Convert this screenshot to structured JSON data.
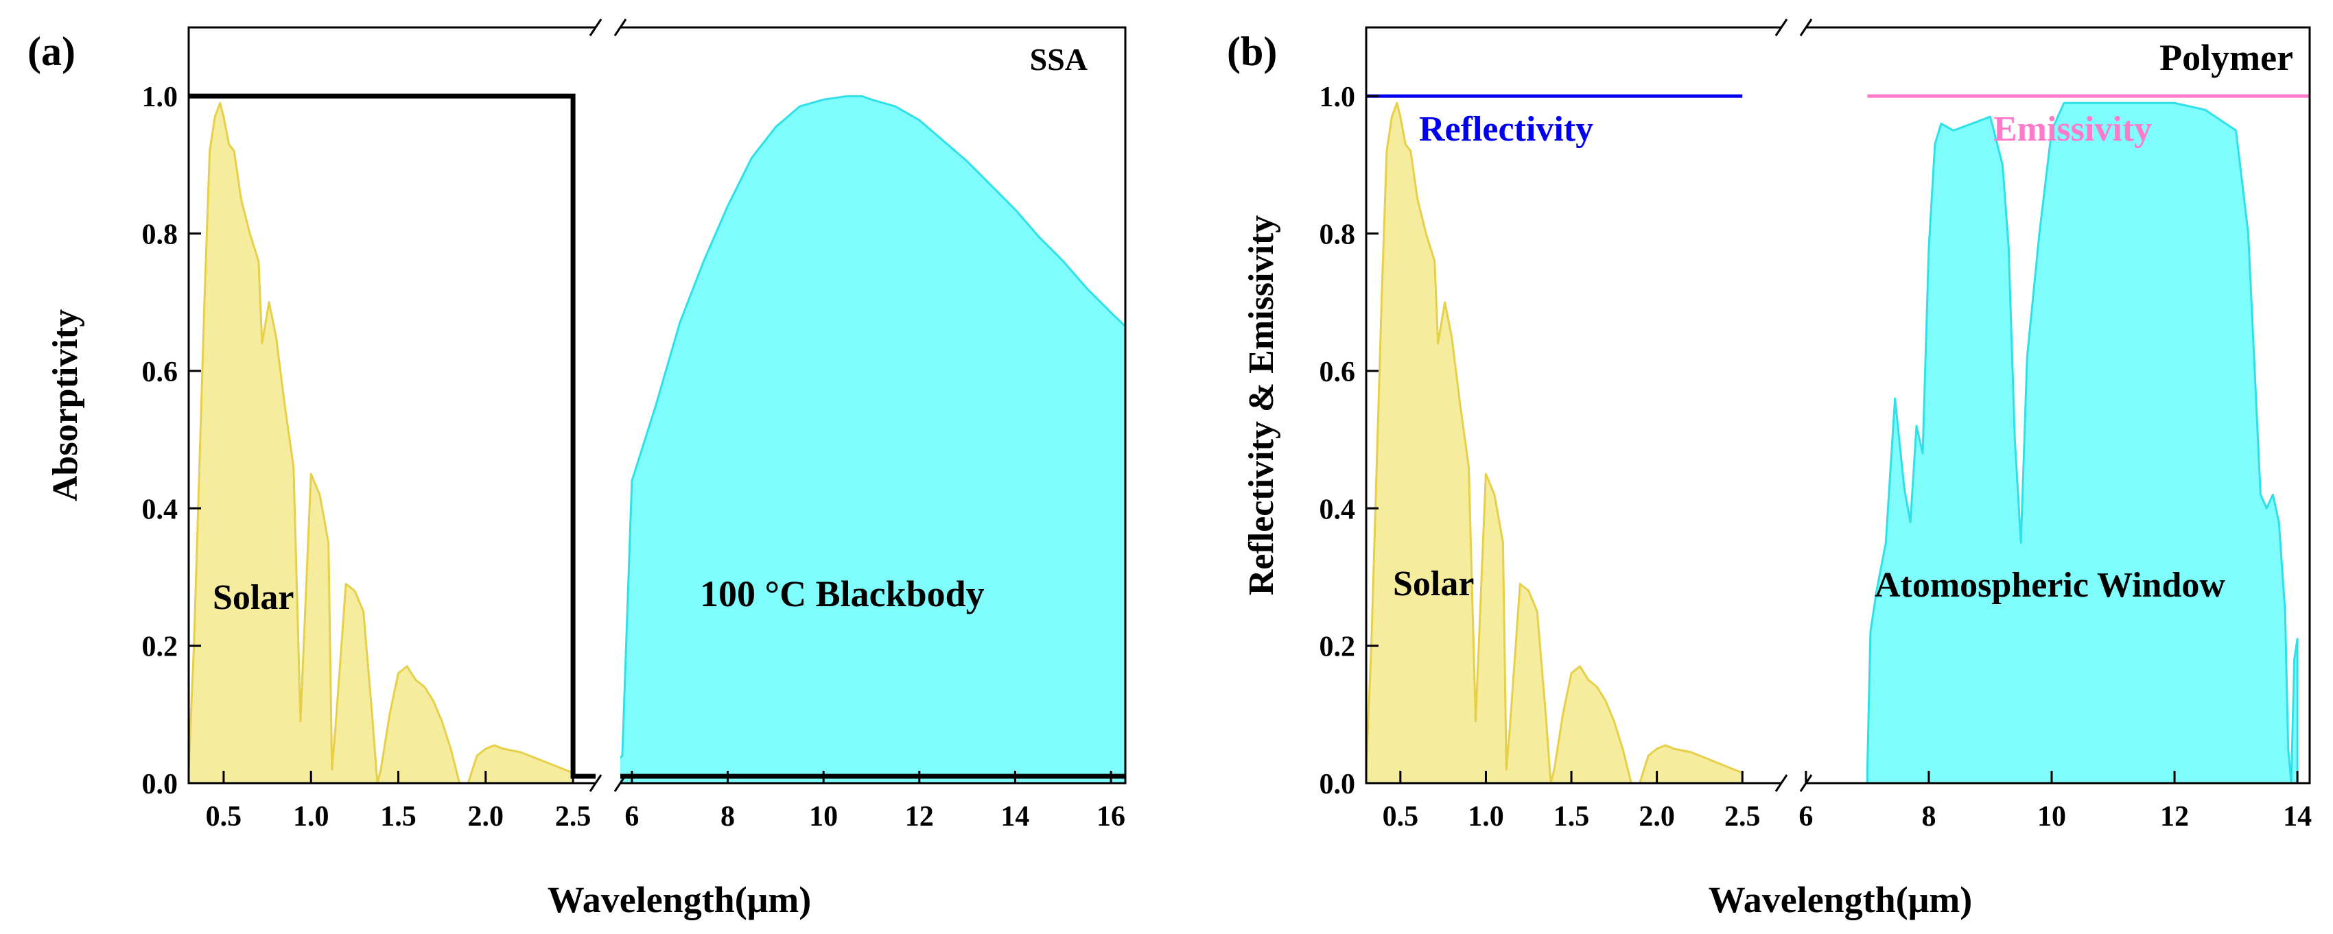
{
  "chart_data": [
    {
      "type": "area",
      "panel_label": "(a)",
      "title": "SSA",
      "xlabel": "Wavelength(μm)",
      "ylabel": "Absorptivity",
      "ylim": [
        0.0,
        1.1
      ],
      "yticks": [
        "0.0",
        "0.2",
        "0.4",
        "0.6",
        "0.8",
        "1.0"
      ],
      "axis_break": true,
      "x_segments": [
        {
          "range": [
            0.3,
            2.7
          ],
          "ticks": [
            "0.5",
            "1.0",
            "1.5",
            "2.0",
            "2.5"
          ],
          "tick_values": [
            0.5,
            1.0,
            1.5,
            2.0,
            2.5
          ]
        },
        {
          "range": [
            5.5,
            16.3
          ],
          "ticks": [
            "6",
            "8",
            "10",
            "12",
            "14",
            "16"
          ],
          "tick_values": [
            6,
            8,
            10,
            12,
            14,
            16
          ]
        }
      ],
      "annotations": {
        "solar": "Solar",
        "blackbody": "100 °C Blackbody"
      },
      "colors": {
        "solar": "#f5ec9e",
        "solar_edge": "#e6d04a",
        "blackbody": "#7ffdfd",
        "blackbody_edge": "#2fe0e8",
        "line": "#000000"
      },
      "series": [
        {
          "name": "Solar",
          "segment": 0,
          "x": [
            0.3,
            0.33,
            0.36,
            0.39,
            0.42,
            0.45,
            0.48,
            0.5,
            0.53,
            0.56,
            0.6,
            0.65,
            0.7,
            0.72,
            0.76,
            0.8,
            0.85,
            0.9,
            0.94,
            1.0,
            1.05,
            1.1,
            1.12,
            1.14,
            1.2,
            1.25,
            1.3,
            1.35,
            1.38,
            1.4,
            1.45,
            1.5,
            1.55,
            1.6,
            1.65,
            1.7,
            1.75,
            1.8,
            1.85,
            1.9,
            1.95,
            2.0,
            2.05,
            2.1,
            2.2,
            2.3,
            2.4,
            2.5
          ],
          "values": [
            0.02,
            0.2,
            0.45,
            0.7,
            0.92,
            0.97,
            0.99,
            0.97,
            0.93,
            0.92,
            0.85,
            0.8,
            0.76,
            0.64,
            0.7,
            0.65,
            0.55,
            0.46,
            0.09,
            0.45,
            0.42,
            0.35,
            0.02,
            0.08,
            0.29,
            0.28,
            0.25,
            0.1,
            0.0,
            0.02,
            0.1,
            0.16,
            0.17,
            0.15,
            0.14,
            0.12,
            0.09,
            0.05,
            0.0,
            0.0,
            0.04,
            0.05,
            0.055,
            0.05,
            0.045,
            0.035,
            0.025,
            0.015
          ]
        },
        {
          "name": "100 °C Blackbody",
          "segment": 1,
          "x": [
            5.5,
            5.8,
            6.0,
            6.5,
            7.0,
            7.5,
            8.0,
            8.5,
            9.0,
            9.5,
            10.0,
            10.5,
            10.8,
            11.0,
            11.5,
            12.0,
            12.5,
            13.0,
            13.5,
            14.0,
            14.5,
            15.0,
            15.5,
            16.0,
            16.3
          ],
          "values": [
            0.02,
            0.04,
            0.44,
            0.55,
            0.67,
            0.76,
            0.84,
            0.91,
            0.955,
            0.985,
            0.995,
            1.0,
            1.0,
            0.995,
            0.985,
            0.965,
            0.935,
            0.905,
            0.87,
            0.835,
            0.795,
            0.76,
            0.72,
            0.685,
            0.665
          ]
        },
        {
          "name": "SSA absorptivity",
          "segment": "both",
          "x": [
            0.3,
            2.5,
            2.5,
            16.3
          ],
          "values": [
            1.0,
            1.0,
            0.01,
            0.01
          ]
        }
      ]
    },
    {
      "type": "area",
      "panel_label": "(b)",
      "title": "Polymer",
      "xlabel": "Wavelength(μm)",
      "ylabel": "Reflectivity & Emissivity",
      "ylim": [
        0.0,
        1.1
      ],
      "yticks": [
        "0.0",
        "0.2",
        "0.4",
        "0.6",
        "0.8",
        "1.0"
      ],
      "axis_break": true,
      "x_segments": [
        {
          "range": [
            0.3,
            2.8
          ],
          "ticks": [
            "0.5",
            "1.0",
            "1.5",
            "2.0",
            "2.5"
          ],
          "tick_values": [
            0.5,
            1.0,
            1.5,
            2.0,
            2.5
          ]
        },
        {
          "range": [
            5.8,
            14.2
          ],
          "ticks": [
            "6",
            "8",
            "10",
            "12",
            "14"
          ],
          "tick_values": [
            6,
            8,
            10,
            12,
            14
          ]
        }
      ],
      "annotations": {
        "solar": "Solar",
        "window": "Atomospheric Window",
        "reflectivity": "Reflectivity",
        "emissivity": "Emissivity"
      },
      "colors": {
        "solar": "#f5ec9e",
        "solar_edge": "#e6d04a",
        "window": "#7ffdfd",
        "window_edge": "#2fe0e8",
        "reflectivity": "#0000ee",
        "emissivity": "#ff7ac8"
      },
      "series": [
        {
          "name": "Solar",
          "segment": 0,
          "x": [
            0.3,
            0.33,
            0.36,
            0.39,
            0.42,
            0.45,
            0.48,
            0.5,
            0.53,
            0.56,
            0.6,
            0.65,
            0.7,
            0.72,
            0.76,
            0.8,
            0.85,
            0.9,
            0.94,
            1.0,
            1.05,
            1.1,
            1.12,
            1.14,
            1.2,
            1.25,
            1.3,
            1.35,
            1.38,
            1.4,
            1.45,
            1.5,
            1.55,
            1.6,
            1.65,
            1.7,
            1.75,
            1.8,
            1.85,
            1.9,
            1.95,
            2.0,
            2.05,
            2.1,
            2.2,
            2.3,
            2.4,
            2.5
          ],
          "values": [
            0.02,
            0.2,
            0.45,
            0.7,
            0.92,
            0.97,
            0.99,
            0.97,
            0.93,
            0.92,
            0.85,
            0.8,
            0.76,
            0.64,
            0.7,
            0.65,
            0.55,
            0.46,
            0.09,
            0.45,
            0.42,
            0.35,
            0.02,
            0.08,
            0.29,
            0.28,
            0.25,
            0.1,
            0.0,
            0.02,
            0.1,
            0.16,
            0.17,
            0.15,
            0.14,
            0.12,
            0.09,
            0.05,
            0.0,
            0.0,
            0.04,
            0.05,
            0.055,
            0.05,
            0.045,
            0.035,
            0.025,
            0.015
          ]
        },
        {
          "name": "Atomospheric Window",
          "segment": 1,
          "x": [
            7.0,
            7.05,
            7.15,
            7.3,
            7.45,
            7.6,
            7.7,
            7.8,
            7.9,
            8.0,
            8.1,
            8.2,
            8.4,
            8.7,
            9.0,
            9.2,
            9.3,
            9.4,
            9.5,
            9.6,
            9.8,
            10.0,
            10.2,
            10.5,
            11.0,
            11.5,
            12.0,
            12.5,
            13.0,
            13.2,
            13.4,
            13.5,
            13.6,
            13.7,
            13.8,
            13.85,
            13.9,
            13.95,
            14.0
          ],
          "values": [
            0.02,
            0.22,
            0.28,
            0.35,
            0.56,
            0.43,
            0.38,
            0.52,
            0.48,
            0.78,
            0.93,
            0.96,
            0.95,
            0.96,
            0.97,
            0.9,
            0.78,
            0.5,
            0.35,
            0.62,
            0.8,
            0.95,
            0.99,
            0.99,
            0.99,
            0.99,
            0.99,
            0.98,
            0.95,
            0.8,
            0.42,
            0.4,
            0.42,
            0.38,
            0.25,
            0.05,
            0.0,
            0.18,
            0.21
          ]
        },
        {
          "name": "Reflectivity",
          "segment": 0,
          "x": [
            0.3,
            2.5
          ],
          "values": [
            1.0,
            1.0
          ]
        },
        {
          "name": "Emissivity",
          "segment": 1,
          "x": [
            7.0,
            14.2
          ],
          "values": [
            1.0,
            1.0
          ]
        }
      ]
    }
  ]
}
